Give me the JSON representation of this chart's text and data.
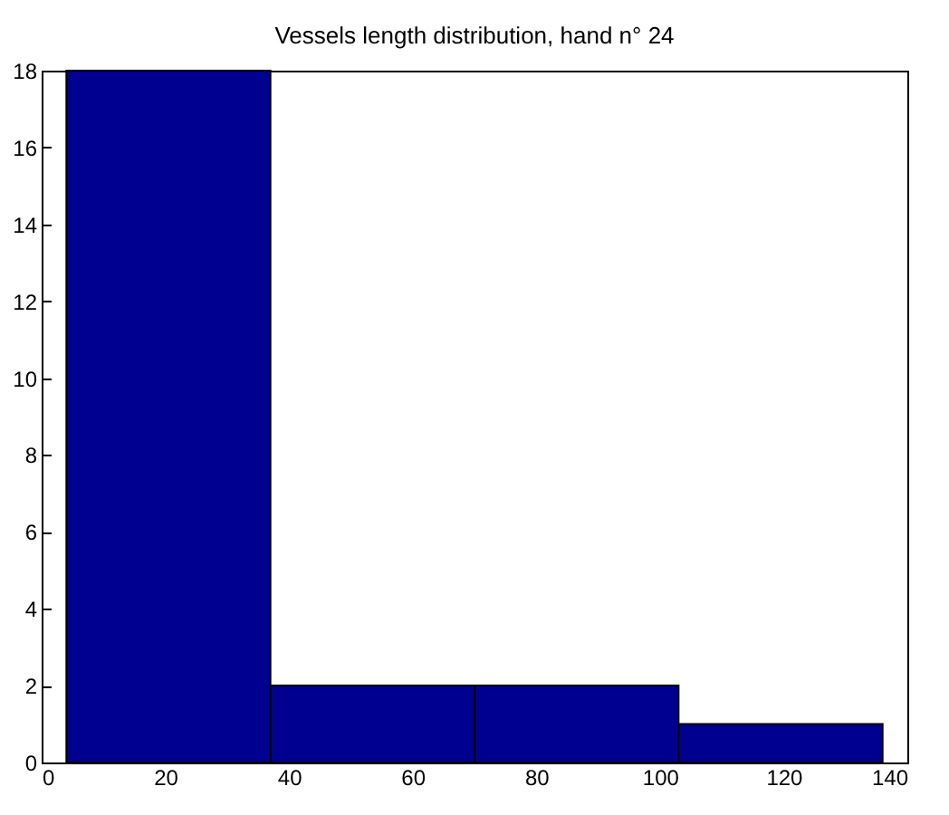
{
  "chart_data": {
    "type": "histogram",
    "title": "Vessels length distribution, hand n° 24",
    "bins": [
      4,
      37,
      70,
      103,
      136
    ],
    "values": [
      18,
      2,
      2,
      1
    ],
    "color": "#000090",
    "xlim": [
      0,
      140
    ],
    "xticks": [
      0,
      20,
      40,
      60,
      80,
      100,
      120,
      140
    ],
    "ylim": [
      0,
      18
    ],
    "yticks": [
      0,
      2,
      4,
      6,
      8,
      10,
      12,
      14,
      16,
      18
    ],
    "grid": false
  }
}
